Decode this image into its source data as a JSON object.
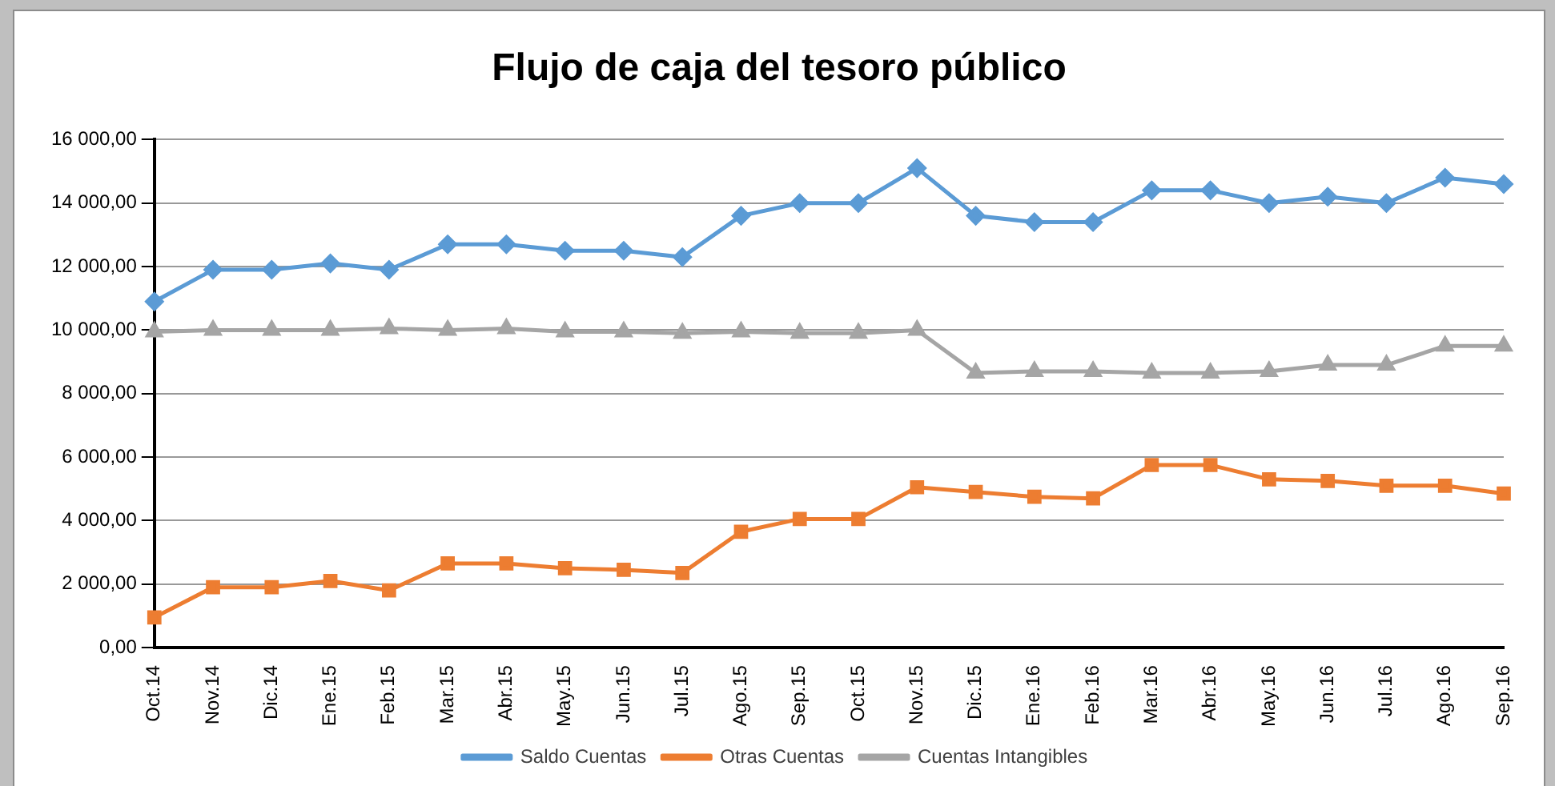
{
  "chart_data": {
    "type": "line",
    "title": "Flujo de caja del tesoro público",
    "categories": [
      "Oct.14",
      "Nov.14",
      "Dic.14",
      "Ene.15",
      "Feb.15",
      "Mar.15",
      "Abr.15",
      "May.15",
      "Jun.15",
      "Jul.15",
      "Ago.15",
      "Sep.15",
      "Oct.15",
      "Nov.15",
      "Dic.15",
      "Ene.16",
      "Feb.16",
      "Mar.16",
      "Abr.16",
      "May.16",
      "Jun.16",
      "Jul.16",
      "Ago.16",
      "Sep.16"
    ],
    "series": [
      {
        "name": "Saldo Cuentas",
        "color": "#5b9bd5",
        "marker": "diamond",
        "values": [
          10900,
          11900,
          11900,
          12100,
          11900,
          12700,
          12700,
          12500,
          12500,
          12300,
          13600,
          14000,
          14000,
          15100,
          13600,
          13400,
          13400,
          14400,
          14400,
          14000,
          14200,
          14000,
          14800,
          14600
        ]
      },
      {
        "name": "Otras Cuentas",
        "color": "#ed7d31",
        "marker": "square",
        "values": [
          950,
          1900,
          1900,
          2100,
          1800,
          2650,
          2650,
          2500,
          2450,
          2350,
          3650,
          4050,
          4050,
          5050,
          4900,
          4750,
          4700,
          5750,
          5750,
          5300,
          5250,
          5100,
          5100,
          4850
        ]
      },
      {
        "name": "Cuentas Intangibles",
        "color": "#a5a5a5",
        "marker": "triangle",
        "values": [
          9950,
          10000,
          10000,
          10000,
          10050,
          10000,
          10050,
          9950,
          9950,
          9900,
          9950,
          9900,
          9900,
          10000,
          8650,
          8700,
          8700,
          8650,
          8650,
          8700,
          8900,
          8900,
          9500,
          9500
        ]
      }
    ],
    "ylim": [
      0,
      16000
    ],
    "yticks": [
      {
        "value": 0,
        "label": "0,00"
      },
      {
        "value": 2000,
        "label": "2 000,00"
      },
      {
        "value": 4000,
        "label": "4 000,00"
      },
      {
        "value": 6000,
        "label": "6 000,00"
      },
      {
        "value": 8000,
        "label": "8 000,00"
      },
      {
        "value": 10000,
        "label": "10 000,00"
      },
      {
        "value": 12000,
        "label": "12 000,00"
      },
      {
        "value": 14000,
        "label": "14 000,00"
      },
      {
        "value": 16000,
        "label": "16 000,00"
      }
    ],
    "grid": "y",
    "legend": "bottom",
    "line_style": "solid"
  }
}
